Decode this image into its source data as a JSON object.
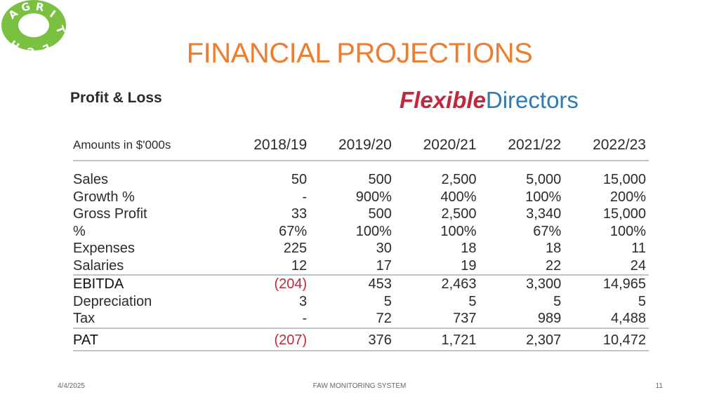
{
  "logo": {
    "letters": [
      "A",
      "G",
      "R",
      "I",
      "T",
      "E",
      "C",
      "H"
    ],
    "color": "#7ac142"
  },
  "title": "FINANCIAL PROJECTIONS",
  "image": {
    "heading": "Profit & Loss",
    "brand": {
      "part1": "Flexible",
      "part2": "Directors"
    },
    "table": {
      "header": [
        "Amounts in $'000s",
        "2018/19",
        "2019/20",
        "2020/21",
        "2021/22",
        "2022/23"
      ],
      "rows": [
        {
          "label": "Sales",
          "values": [
            "50",
            "500",
            "2,500",
            "5,000",
            "15,000"
          ]
        },
        {
          "label": "Growth %",
          "values": [
            "-",
            "900%",
            "400%",
            "100%",
            "200%"
          ]
        },
        {
          "label": "Gross Profit",
          "values": [
            "33",
            "500",
            "2,500",
            "3,340",
            "15,000"
          ]
        },
        {
          "label": "%",
          "values": [
            "67%",
            "100%",
            "100%",
            "67%",
            "100%"
          ]
        },
        {
          "label": "Expenses",
          "values": [
            "225",
            "30",
            "18",
            "18",
            "11"
          ]
        },
        {
          "label": "Salaries",
          "values": [
            "12",
            "17",
            "19",
            "22",
            "24"
          ]
        },
        {
          "label": "EBITDA",
          "values": [
            "(204)",
            "453",
            "2,463",
            "3,300",
            "14,965"
          ]
        },
        {
          "label": "Depreciation",
          "values": [
            "3",
            "5",
            "5",
            "5",
            "5"
          ]
        },
        {
          "label": "Tax",
          "values": [
            "-",
            "72",
            "737",
            "989",
            "4,488"
          ]
        },
        {
          "label": "PAT",
          "values": [
            "(207)",
            "376",
            "1,721",
            "2,307",
            "10,472"
          ]
        }
      ]
    }
  },
  "footer": {
    "date": "4/4/2025",
    "center": "FAW MONITORING SYSTEM",
    "page": "11"
  }
}
